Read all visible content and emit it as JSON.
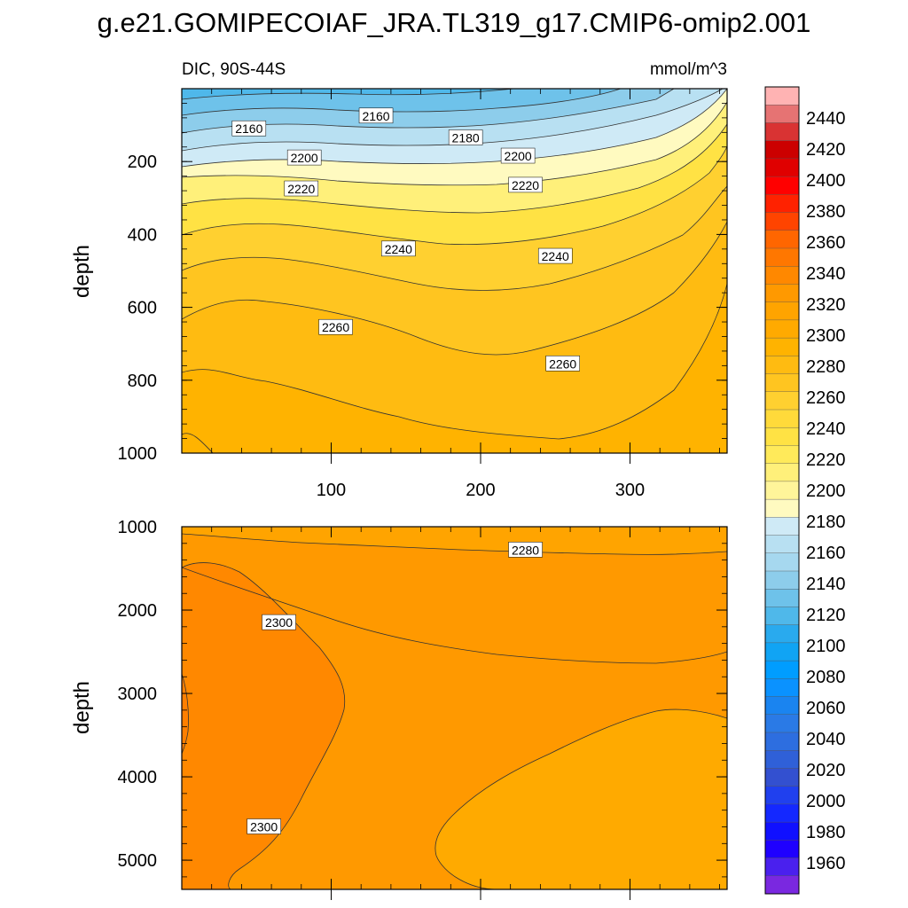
{
  "figure": {
    "title": "g.e21.GOMIPECOIAF_JRA.TL319_g17.CMIP6-omip2.001"
  },
  "chart_data": [
    {
      "type": "contour",
      "left_string": "DIC, 90S-44S",
      "right_string": "mmol/m^3",
      "xlabel": "",
      "ylabel": "depth",
      "xlim": [
        0,
        365
      ],
      "ylim": [
        1000,
        0
      ],
      "x_ticks": [
        100,
        200,
        300
      ],
      "y_ticks": [
        200,
        400,
        600,
        800,
        1000
      ],
      "contour_labels": [
        {
          "text": "2160",
          "x": 45,
          "y": 110
        },
        {
          "text": "2160",
          "x": 130,
          "y": 75
        },
        {
          "text": "2180",
          "x": 190,
          "y": 135
        },
        {
          "text": "2200",
          "x": 82,
          "y": 190
        },
        {
          "text": "2200",
          "x": 225,
          "y": 185
        },
        {
          "text": "2220",
          "x": 80,
          "y": 275
        },
        {
          "text": "2220",
          "x": 230,
          "y": 265
        },
        {
          "text": "2240",
          "x": 145,
          "y": 440
        },
        {
          "text": "2240",
          "x": 250,
          "y": 460
        },
        {
          "text": "2260",
          "x": 103,
          "y": 655
        },
        {
          "text": "2260",
          "x": 255,
          "y": 755
        }
      ]
    },
    {
      "type": "contour",
      "xlabel": "",
      "ylabel": "depth",
      "xlim": [
        0,
        365
      ],
      "ylim": [
        5350,
        1000
      ],
      "y_ticks": [
        1000,
        2000,
        3000,
        4000,
        5000
      ],
      "contour_labels": [
        {
          "text": "2280",
          "x": 230,
          "y": 1280
        },
        {
          "text": "2300",
          "x": 65,
          "y": 2150
        },
        {
          "text": "2300",
          "x": 55,
          "y": 4600
        }
      ]
    }
  ],
  "colorbar": {
    "labels": [
      "2440",
      "2420",
      "2400",
      "2380",
      "2360",
      "2340",
      "2320",
      "2300",
      "2280",
      "2260",
      "2240",
      "2220",
      "2200",
      "2180",
      "2160",
      "2140",
      "2120",
      "2100",
      "2080",
      "2060",
      "2040",
      "2020",
      "2000",
      "1980",
      "1960"
    ],
    "colors": [
      "#ffb3b3",
      "#e67373",
      "#d93333",
      "#cc0000",
      "#e00000",
      "#ff0000",
      "#ff2200",
      "#ff4400",
      "#ff6600",
      "#ff7700",
      "#ff8800",
      "#ff9900",
      "#ffa400",
      "#ffaa00",
      "#ffb300",
      "#ffbb11",
      "#ffc520",
      "#ffd030",
      "#ffda3a",
      "#ffe244",
      "#ffea5a",
      "#fff07a",
      "#fff59a",
      "#fffac0",
      "#cfeaf6",
      "#b8e0f2",
      "#a6d8ef",
      "#8dcdeb",
      "#6ec2ea",
      "#4fb8ea",
      "#29aaee",
      "#10a4f4",
      "#009dff",
      "#0a92ff",
      "#1a84f0",
      "#2a7ae6",
      "#2d6ee0",
      "#2f60d8",
      "#3350d0",
      "#2040ee",
      "#1428ff",
      "#1010ff",
      "#1f00ff",
      "#4a20ee",
      "#7a28e0"
    ]
  }
}
